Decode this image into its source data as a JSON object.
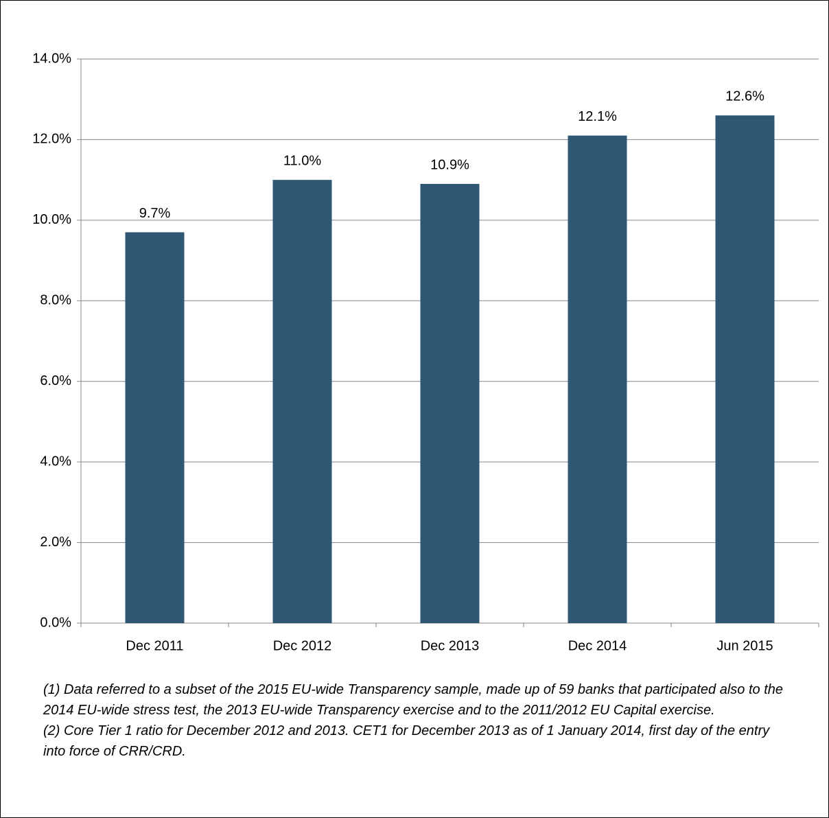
{
  "chart_data": {
    "type": "bar",
    "categories": [
      "Dec 2011",
      "Dec 2012",
      "Dec 2013",
      "Dec 2014",
      "Jun 2015"
    ],
    "values": [
      9.7,
      11.0,
      10.9,
      12.1,
      12.6
    ],
    "value_labels": [
      "9.7%",
      "11.0%",
      "10.9%",
      "12.1%",
      "12.6%"
    ],
    "color": "#2f5673",
    "ylim": [
      0,
      14
    ],
    "yticks": [
      {
        "value": 0,
        "label": "0.0%"
      },
      {
        "value": 2,
        "label": "2.0%"
      },
      {
        "value": 4,
        "label": "4.0%"
      },
      {
        "value": 6,
        "label": "6.0%"
      },
      {
        "value": 8,
        "label": "8.0%"
      },
      {
        "value": 10,
        "label": "10.0%"
      },
      {
        "value": 12,
        "label": "12.0%"
      },
      {
        "value": 14,
        "label": "14.0%"
      }
    ],
    "grid": true,
    "notes": [
      "(1) Data referred to a subset of the 2015 EU-wide Transparency sample, made up of 59 banks that participated also to the 2014  EU-wide stress test, the 2013 EU-wide Transparency exercise and to the 2011/2012 EU Capital exercise.",
      "(2) Core Tier 1 ratio for December 2012 and 2013. CET1 for December 2013 as of 1 January 2014, first day of the entry into force of CRR/CRD."
    ]
  }
}
